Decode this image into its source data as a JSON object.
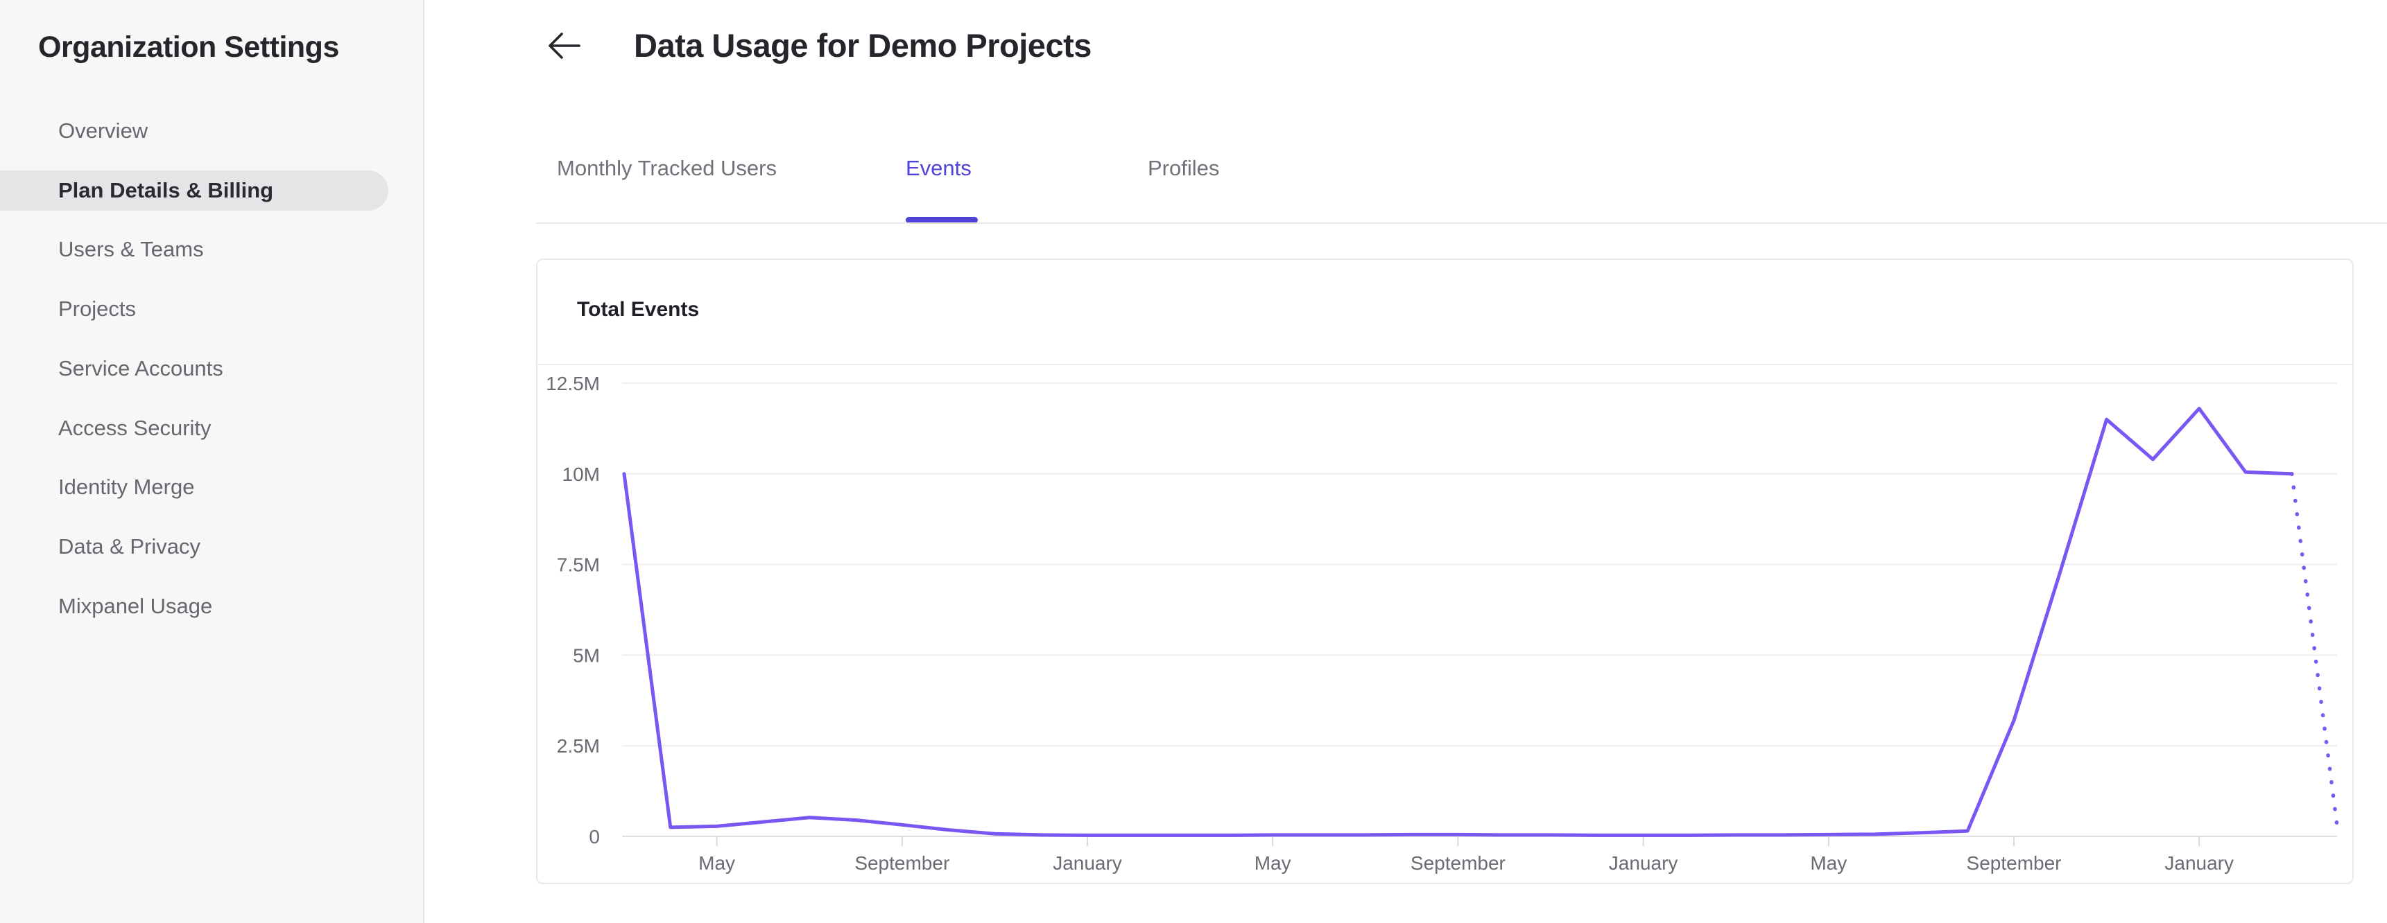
{
  "sidebar": {
    "title": "Organization Settings",
    "items": [
      {
        "label": "Overview",
        "active": false
      },
      {
        "label": "Plan Details & Billing",
        "active": true
      },
      {
        "label": "Users & Teams",
        "active": false
      },
      {
        "label": "Projects",
        "active": false
      },
      {
        "label": "Service Accounts",
        "active": false
      },
      {
        "label": "Access Security",
        "active": false
      },
      {
        "label": "Identity Merge",
        "active": false
      },
      {
        "label": "Data & Privacy",
        "active": false
      },
      {
        "label": "Mixpanel Usage",
        "active": false
      }
    ]
  },
  "header": {
    "title": "Data Usage for Demo Projects",
    "back_icon": "arrow-left"
  },
  "tabs": [
    {
      "label": "Monthly Tracked Users",
      "active": false
    },
    {
      "label": "Events",
      "active": true
    },
    {
      "label": "Profiles",
      "active": false
    }
  ],
  "card": {
    "title": "Total Events"
  },
  "colors": {
    "accent": "#4f42d9",
    "chart_line": "#7857f2",
    "sidebar_bg": "#f7f7f8",
    "selected_item_bg": "#e5e5e7",
    "text_dark": "#26252b",
    "text_gray": "#66666e",
    "axis_label": "#6b6b73",
    "gridline": "#ededef",
    "axis_line": "#dfdfe2",
    "tick_mark": "#d9d9dc"
  },
  "chart_data": {
    "type": "line",
    "title": "Total Events",
    "grid": true,
    "legend": false,
    "x_axis": {
      "tick_labels": [
        "May",
        "September",
        "January",
        "May",
        "September",
        "January",
        "May",
        "September",
        "January"
      ],
      "tick_month_indices": [
        2,
        6,
        10,
        14,
        18,
        22,
        26,
        30,
        34
      ],
      "note": "monthly data points; point 0 sits at the plot's left edge two months before the first May tick"
    },
    "y_axis": {
      "tick_labels_top_down": [
        "12.5M",
        "10M",
        "7.5M",
        "5M",
        "2.5M",
        "0"
      ],
      "min": 0,
      "max": 12500000
    },
    "series": [
      {
        "name": "Total Events",
        "values_millions": [
          10,
          0.25,
          0.28,
          0.4,
          0.52,
          0.45,
          0.32,
          0.18,
          0.07,
          0.04,
          0.03,
          0.03,
          0.03,
          0.03,
          0.04,
          0.04,
          0.04,
          0.05,
          0.05,
          0.04,
          0.04,
          0.03,
          0.03,
          0.03,
          0.04,
          0.04,
          0.05,
          0.06,
          0.1,
          0.15,
          3.2,
          7.3,
          11.5,
          10.4,
          11.8,
          10.05,
          10.0
        ],
        "projected_next_value_millions": 0.3,
        "projection_style": "dotted"
      }
    ]
  }
}
